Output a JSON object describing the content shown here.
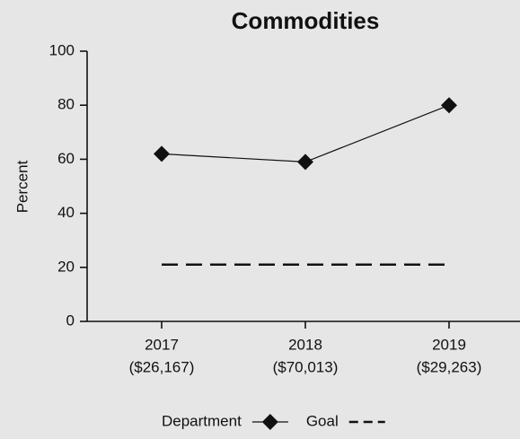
{
  "chart_data": {
    "type": "line",
    "title": "Commodities",
    "y_label": "Percent",
    "categories": [
      "2017",
      "2018",
      "2019"
    ],
    "category_sublabels": [
      "($26,167)",
      "($70,013)",
      "($29,263)"
    ],
    "series": [
      {
        "name": "Department",
        "color": "#111111",
        "marker": "diamond",
        "values": [
          62,
          59,
          80
        ]
      },
      {
        "name": "Goal",
        "color": "#111111",
        "dashed": true,
        "values": [
          21,
          21,
          21
        ]
      }
    ],
    "ylim": [
      0,
      100
    ],
    "yticks": [
      0,
      20,
      40,
      60,
      80,
      100
    ],
    "grid": false,
    "legend": "bottom"
  }
}
